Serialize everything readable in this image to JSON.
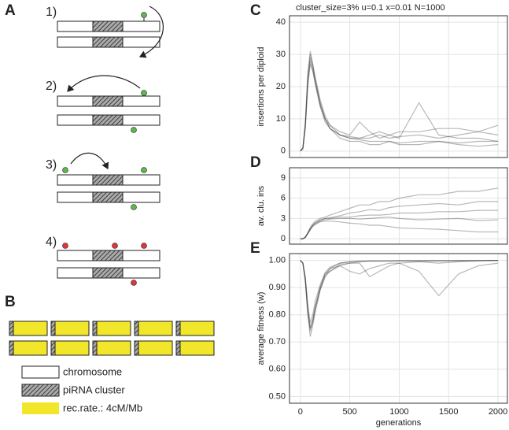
{
  "panel_a": {
    "label": "A",
    "steps": [
      "1)",
      "2)",
      "3)",
      "4)"
    ]
  },
  "panel_b": {
    "label": "B",
    "legend": [
      "chromosome",
      "piRNA cluster",
      "rec.rate.: 4cM/Mb"
    ]
  },
  "chart_data": [
    {
      "type": "line",
      "panel": "C",
      "title": "cluster_size=3%   u=0.1   x=0.01   N=1000",
      "ylabel": "insertions per diploid",
      "x": [
        0,
        25,
        50,
        75,
        100,
        125,
        150,
        200,
        250,
        300,
        400,
        500,
        600,
        700,
        800,
        900,
        1000,
        1200,
        1400,
        1600,
        1800,
        2000
      ],
      "xlim": [
        -110,
        2095
      ],
      "xticks": [
        0,
        500,
        1000,
        1500,
        2000
      ],
      "ylim": [
        -2,
        42
      ],
      "yticks": [
        0,
        10,
        20,
        30,
        40
      ],
      "grid": true,
      "series": [
        {
          "color": "#333333",
          "values": [
            0,
            1,
            8,
            22,
            29,
            26,
            22,
            15,
            10,
            7,
            5,
            4,
            3.5,
            3,
            3,
            3,
            2.5,
            3,
            3,
            2.5,
            3,
            3
          ]
        },
        {
          "color": "#333333",
          "values": [
            0,
            1,
            9,
            24,
            31,
            27,
            23,
            16,
            11,
            8,
            5,
            4.5,
            4,
            4,
            5,
            4,
            4.5,
            5,
            4,
            5,
            6,
            5
          ]
        },
        {
          "color": "#333333",
          "values": [
            0,
            0.5,
            7,
            20,
            27,
            25,
            21,
            14,
            9,
            7,
            4,
            3,
            3,
            2,
            2,
            3,
            2,
            2,
            3,
            2,
            1.5,
            2
          ]
        },
        {
          "color": "#333333",
          "values": [
            0,
            1,
            8,
            23,
            30,
            27,
            22,
            15,
            10,
            8,
            6,
            5,
            9,
            6,
            4,
            5,
            4,
            15,
            5,
            4,
            4,
            3
          ]
        },
        {
          "color": "#333333",
          "values": [
            0,
            1,
            8,
            21,
            28,
            25,
            21,
            14,
            10,
            7,
            5,
            4,
            4,
            5,
            6,
            5,
            6,
            6,
            7,
            7,
            6,
            8
          ]
        }
      ]
    },
    {
      "type": "line",
      "panel": "D",
      "ylabel": "av. clu. ins",
      "x": [
        0,
        25,
        50,
        75,
        100,
        125,
        150,
        200,
        250,
        300,
        400,
        500,
        600,
        700,
        800,
        900,
        1000,
        1200,
        1400,
        1600,
        1800,
        2000
      ],
      "xlim": [
        -110,
        2095
      ],
      "xticks": [
        0,
        500,
        1000,
        1500,
        2000
      ],
      "ylim": [
        -0.8,
        10.5
      ],
      "yticks": [
        0,
        3,
        6,
        9
      ],
      "grid": true,
      "series": [
        {
          "color": "#333333",
          "values": [
            0,
            0,
            0.2,
            0.8,
            1.5,
            2,
            2.4,
            2.8,
            3,
            3,
            3.2,
            3.2,
            3.4,
            3.5,
            3.5,
            3.6,
            3.8,
            3.8,
            4,
            4,
            4.2,
            4.2
          ]
        },
        {
          "color": "#333333",
          "values": [
            0,
            0,
            0.3,
            0.9,
            1.7,
            2.2,
            2.6,
            3,
            3.2,
            3.5,
            4,
            4.5,
            5,
            5,
            5.5,
            5.5,
            6,
            6.5,
            6.5,
            7,
            7,
            7.5
          ]
        },
        {
          "color": "#333333",
          "values": [
            0,
            0,
            0.2,
            0.7,
            1.3,
            1.8,
            2.1,
            2.5,
            2.6,
            2.6,
            2.5,
            2.3,
            2.2,
            2,
            2,
            1.8,
            1.6,
            1.5,
            1.4,
            1.2,
            1,
            1
          ]
        },
        {
          "color": "#333333",
          "values": [
            0,
            0,
            0.2,
            0.8,
            1.5,
            2,
            2.3,
            2.7,
            3,
            3.1,
            3.4,
            3.8,
            4,
            4.3,
            4.2,
            4.6,
            4.8,
            5,
            5.2,
            5,
            5.5,
            5.5
          ]
        },
        {
          "color": "#333333",
          "values": [
            0,
            0,
            0.2,
            0.8,
            1.4,
            1.9,
            2.2,
            2.6,
            2.8,
            2.9,
            3,
            3,
            2.9,
            3,
            3.1,
            3.2,
            3,
            2.8,
            2.9,
            3,
            2.7,
            2.8
          ]
        }
      ]
    },
    {
      "type": "line",
      "panel": "E",
      "ylabel": "average fitness (w)",
      "xlabel": "generations",
      "x": [
        0,
        25,
        50,
        75,
        100,
        125,
        150,
        200,
        250,
        300,
        400,
        500,
        600,
        700,
        800,
        900,
        1000,
        1200,
        1400,
        1600,
        1800,
        2000
      ],
      "xlim": [
        -110,
        2095
      ],
      "xticks": [
        0,
        500,
        1000,
        1500,
        2000
      ],
      "ylim": [
        0.475,
        1.025
      ],
      "yticks": [
        {
          "value": 0.5,
          "label": "0.50"
        },
        {
          "value": 0.6,
          "label": "0.60"
        },
        {
          "value": 0.7,
          "label": "0.70"
        },
        {
          "value": 0.8,
          "label": "0.80"
        },
        {
          "value": 0.9,
          "label": "0.90"
        },
        {
          "value": 1,
          "label": "1.00"
        }
      ],
      "grid": true,
      "series": [
        {
          "color": "#333333",
          "values": [
            1,
            0.99,
            0.93,
            0.82,
            0.75,
            0.78,
            0.83,
            0.9,
            0.95,
            0.97,
            0.99,
            0.995,
            0.997,
            0.998,
            0.998,
            0.998,
            0.999,
            0.999,
            0.999,
            0.999,
            0.999,
            1
          ]
        },
        {
          "color": "#333333",
          "values": [
            1,
            0.99,
            0.92,
            0.8,
            0.72,
            0.76,
            0.81,
            0.89,
            0.94,
            0.96,
            0.985,
            0.99,
            0.995,
            0.997,
            0.997,
            0.998,
            0.998,
            0.997,
            0.998,
            0.999,
            0.999,
            1
          ]
        },
        {
          "color": "#333333",
          "values": [
            1,
            0.99,
            0.94,
            0.84,
            0.77,
            0.8,
            0.85,
            0.91,
            0.955,
            0.975,
            0.99,
            0.995,
            0.997,
            0.998,
            0.998,
            0.998,
            0.999,
            0.999,
            0.999,
            0.999,
            0.999,
            1
          ]
        },
        {
          "color": "#333333",
          "values": [
            1,
            0.99,
            0.93,
            0.81,
            0.74,
            0.77,
            0.82,
            0.89,
            0.94,
            0.97,
            0.98,
            0.96,
            0.95,
            0.97,
            0.98,
            0.99,
            0.99,
            0.96,
            0.87,
            0.95,
            0.98,
            0.99
          ]
        },
        {
          "color": "#333333",
          "values": [
            1,
            0.99,
            0.93,
            0.82,
            0.75,
            0.78,
            0.83,
            0.9,
            0.95,
            0.96,
            0.98,
            0.99,
            0.99,
            0.94,
            0.96,
            0.98,
            0.99,
            0.995,
            0.99,
            0.995,
            0.999,
            1
          ]
        }
      ]
    }
  ]
}
